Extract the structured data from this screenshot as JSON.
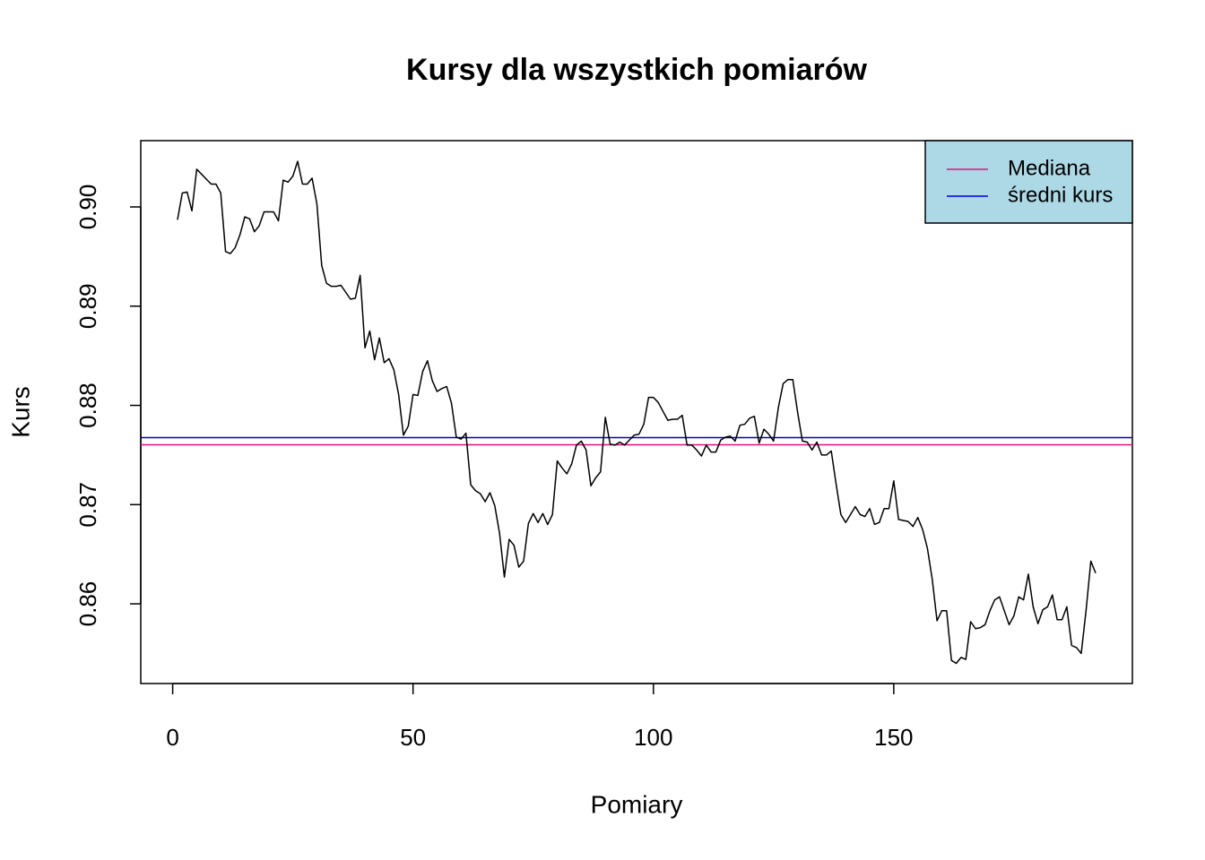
{
  "chart_data": {
    "type": "line",
    "title": "Kursy dla wszystkich pomiarów",
    "xlabel": "Pomiary",
    "ylabel": "Kurs",
    "xlim": [
      -6.64,
      199.64
    ],
    "ylim": [
      0.85197,
      0.90668
    ],
    "xticks": [
      0,
      50,
      100,
      150
    ],
    "yticks": [
      {
        "value": 0.86,
        "label": "0.86"
      },
      {
        "value": 0.87,
        "label": "0.87"
      },
      {
        "value": 0.88,
        "label": "0.88"
      },
      {
        "value": 0.89,
        "label": "0.89"
      },
      {
        "value": 0.9,
        "label": "0.90"
      }
    ],
    "legend": "topright",
    "legend_fill": "#add8e6",
    "x": [
      1,
      2,
      3,
      4,
      5,
      6,
      7,
      8,
      9,
      10,
      11,
      12,
      13,
      14,
      15,
      16,
      17,
      18,
      19,
      20,
      21,
      22,
      23,
      24,
      25,
      26,
      27,
      28,
      29,
      30,
      31,
      32,
      33,
      34,
      35,
      36,
      37,
      38,
      39,
      40,
      41,
      42,
      43,
      44,
      45,
      46,
      47,
      48,
      49,
      50,
      51,
      52,
      53,
      54,
      55,
      56,
      57,
      58,
      59,
      60,
      61,
      62,
      63,
      64,
      65,
      66,
      67,
      68,
      69,
      70,
      71,
      72,
      73,
      74,
      75,
      76,
      77,
      78,
      79,
      80,
      81,
      82,
      83,
      84,
      85,
      86,
      87,
      88,
      89,
      90,
      91,
      92,
      93,
      94,
      95,
      96,
      97,
      98,
      99,
      100,
      101,
      102,
      103,
      104,
      105,
      106,
      107,
      108,
      109,
      110,
      111,
      112,
      113,
      114,
      115,
      116,
      117,
      118,
      119,
      120,
      121,
      122,
      123,
      124,
      125,
      126,
      127,
      128,
      129,
      130,
      131,
      132,
      133,
      134,
      135,
      136,
      137,
      138,
      139,
      140,
      141,
      142,
      143,
      144,
      145,
      146,
      147,
      148,
      149,
      150,
      151,
      152,
      153,
      154,
      155,
      156,
      157,
      158,
      159,
      160,
      161,
      162,
      163,
      164,
      165,
      166,
      167,
      168,
      169,
      170,
      171,
      172,
      173,
      174,
      175,
      176,
      177,
      178,
      179,
      180,
      181,
      182,
      183,
      184,
      185,
      186,
      187,
      188,
      189,
      190,
      191,
      192
    ],
    "series": [
      {
        "color": "#000000",
        "values": [
          0.8987,
          0.9014,
          0.9015,
          0.8996,
          0.9038,
          0.9033,
          0.9028,
          0.9023,
          0.9023,
          0.9014,
          0.8955,
          0.8953,
          0.8959,
          0.8972,
          0.899,
          0.8988,
          0.8975,
          0.8981,
          0.8995,
          0.8995,
          0.8995,
          0.8986,
          0.9027,
          0.9025,
          0.9031,
          0.9046,
          0.9023,
          0.9023,
          0.9029,
          0.9003,
          0.8941,
          0.8923,
          0.892,
          0.892,
          0.8921,
          0.8914,
          0.8907,
          0.8908,
          0.8931,
          0.8858,
          0.8875,
          0.8846,
          0.8868,
          0.8843,
          0.8847,
          0.8836,
          0.8811,
          0.877,
          0.8779,
          0.8811,
          0.881,
          0.8834,
          0.8845,
          0.8825,
          0.8814,
          0.8817,
          0.8819,
          0.8802,
          0.8768,
          0.8766,
          0.8772,
          0.872,
          0.8714,
          0.8711,
          0.8703,
          0.8712,
          0.8699,
          0.8671,
          0.8627,
          0.8665,
          0.8659,
          0.8637,
          0.8643,
          0.8681,
          0.8691,
          0.8682,
          0.8691,
          0.868,
          0.869,
          0.8744,
          0.8737,
          0.8731,
          0.8741,
          0.876,
          0.8764,
          0.8755,
          0.8719,
          0.8727,
          0.8733,
          0.8788,
          0.8761,
          0.876,
          0.8763,
          0.876,
          0.8765,
          0.877,
          0.8771,
          0.8781,
          0.8808,
          0.8808,
          0.8803,
          0.8794,
          0.8785,
          0.8786,
          0.8786,
          0.879,
          0.876,
          0.876,
          0.8755,
          0.8749,
          0.876,
          0.8753,
          0.8753,
          0.8765,
          0.8768,
          0.8769,
          0.8764,
          0.878,
          0.8781,
          0.8787,
          0.8789,
          0.8762,
          0.8776,
          0.8771,
          0.8764,
          0.8798,
          0.8822,
          0.8826,
          0.8826,
          0.8793,
          0.8764,
          0.8763,
          0.8755,
          0.8763,
          0.875,
          0.875,
          0.8754,
          0.8721,
          0.869,
          0.8682,
          0.869,
          0.8698,
          0.869,
          0.8688,
          0.8696,
          0.868,
          0.8682,
          0.8696,
          0.8696,
          0.8724,
          0.8685,
          0.8684,
          0.8683,
          0.8678,
          0.8687,
          0.8675,
          0.8656,
          0.8625,
          0.8583,
          0.8593,
          0.8593,
          0.8543,
          0.854,
          0.8546,
          0.8544,
          0.8582,
          0.8575,
          0.8576,
          0.8579,
          0.8593,
          0.8604,
          0.8607,
          0.8593,
          0.8579,
          0.8588,
          0.8607,
          0.8604,
          0.863,
          0.8597,
          0.858,
          0.8594,
          0.8597,
          0.8609,
          0.8584,
          0.8584,
          0.8597,
          0.8558,
          0.8556,
          0.855,
          0.8593,
          0.8643,
          0.8631
        ]
      }
    ],
    "hlines": [
      {
        "name": "Mediana",
        "value": 0.87603,
        "color": "#e0107f"
      },
      {
        "name": "średni kurs",
        "value": 0.87675,
        "color": "#0000cd"
      }
    ]
  }
}
